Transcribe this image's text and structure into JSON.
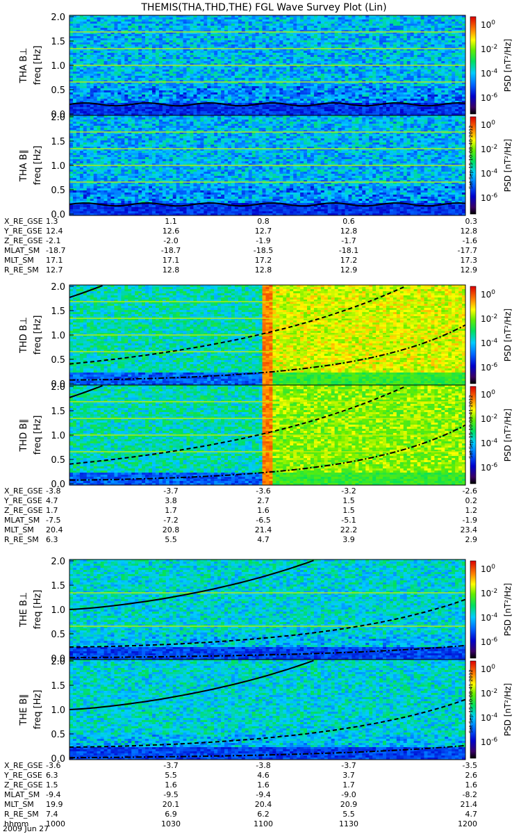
{
  "title": "THEMIS(THA,THD,THE) FGL Wave Survey Plot (Lin)",
  "date_label": "2009 Jun 27",
  "colorbar": {
    "label": "PSD [nT²/Hz]",
    "tick_exponents": [
      0,
      -2,
      -4,
      -6
    ],
    "stamps": [
      "Sat Sep 15 10:08:40 2012",
      "Sat Sep 15 10:08:41 2012",
      "Sat Sep 15 10:08:41 2012"
    ]
  },
  "frequency_ticks": [
    "2.0",
    "1.5",
    "1.0",
    "0.5",
    "0.0"
  ],
  "ephemeris_labels": [
    "X_RE_GSE",
    "Y_RE_GSE",
    "Z_RE_GSE",
    "MLAT_SM",
    "MLT_SM",
    "R_RE_SM"
  ],
  "time_label": "hhmm",
  "time_ticks": [
    "1000",
    "1030",
    "1100",
    "1130",
    "1200"
  ],
  "chart_data": [
    {
      "type": "heatmap",
      "probe": "THA",
      "panels": [
        {
          "label": "THA B⊥",
          "ylabel": "freq [Hz]",
          "ylim": [
            0,
            2.0
          ]
        },
        {
          "label": "THA B∥",
          "ylabel": "freq [Hz]",
          "ylim": [
            0,
            2.0
          ]
        }
      ],
      "zscale": "log",
      "zlim_exponents": [
        -7,
        1
      ],
      "ephemeris": {
        "X_RE_GSE": [
          "1.3",
          "1.1",
          "0.8",
          "0.6",
          "0.3"
        ],
        "Y_RE_GSE": [
          "12.4",
          "12.6",
          "12.7",
          "12.8",
          "12.8"
        ],
        "Z_RE_GSE": [
          "-2.1",
          "-2.0",
          "-1.9",
          "-1.7",
          "-1.6"
        ],
        "MLAT_SM": [
          "-18.7",
          "-18.7",
          "-18.5",
          "-18.1",
          "-17.7"
        ],
        "MLT_SM": [
          "17.1",
          "17.1",
          "17.2",
          "17.2",
          "17.3"
        ],
        "R_RE_SM": [
          "12.7",
          "12.8",
          "12.8",
          "12.9",
          "12.9"
        ]
      }
    },
    {
      "type": "heatmap",
      "probe": "THD",
      "panels": [
        {
          "label": "THD B⊥",
          "ylabel": "freq [Hz]",
          "ylim": [
            0,
            2.0
          ]
        },
        {
          "label": "THD B∥",
          "ylabel": "freq [Hz]",
          "ylim": [
            0,
            2.0
          ]
        }
      ],
      "zscale": "log",
      "zlim_exponents": [
        -7,
        1
      ],
      "ephemeris": {
        "X_RE_GSE": [
          "-3.8",
          "-3.7",
          "-3.6",
          "-3.2",
          "-2.6"
        ],
        "Y_RE_GSE": [
          "4.7",
          "3.8",
          "2.7",
          "1.5",
          "0.2"
        ],
        "Z_RE_GSE": [
          "1.7",
          "1.7",
          "1.6",
          "1.5",
          "1.2"
        ],
        "MLAT_SM": [
          "-7.5",
          "-7.2",
          "-6.5",
          "-5.1",
          "-1.9"
        ],
        "MLT_SM": [
          "20.4",
          "20.8",
          "21.4",
          "22.2",
          "23.4"
        ],
        "R_RE_SM": [
          "6.3",
          "5.5",
          "4.7",
          "3.9",
          "2.9"
        ]
      }
    },
    {
      "type": "heatmap",
      "probe": "THE",
      "panels": [
        {
          "label": "THE B⊥",
          "ylabel": "freq [Hz]",
          "ylim": [
            0,
            2.0
          ]
        },
        {
          "label": "THE B∥",
          "ylabel": "freq [Hz]",
          "ylim": [
            0,
            2.0
          ]
        }
      ],
      "zscale": "log",
      "zlim_exponents": [
        -7,
        1
      ],
      "ephemeris": {
        "X_RE_GSE": [
          "-3.6",
          "-3.7",
          "-3.8",
          "-3.7",
          "-3.5"
        ],
        "Y_RE_GSE": [
          "6.3",
          "5.5",
          "4.6",
          "3.7",
          "2.6"
        ],
        "Z_RE_GSE": [
          "1.5",
          "1.6",
          "1.6",
          "1.7",
          "1.6"
        ],
        "MLAT_SM": [
          "-9.4",
          "-9.5",
          "-9.4",
          "-9.0",
          "-8.2"
        ],
        "MLT_SM": [
          "19.9",
          "20.1",
          "20.4",
          "20.9",
          "21.4"
        ],
        "R_RE_SM": [
          "7.4",
          "6.9",
          "6.2",
          "5.5",
          "4.7"
        ]
      }
    }
  ]
}
